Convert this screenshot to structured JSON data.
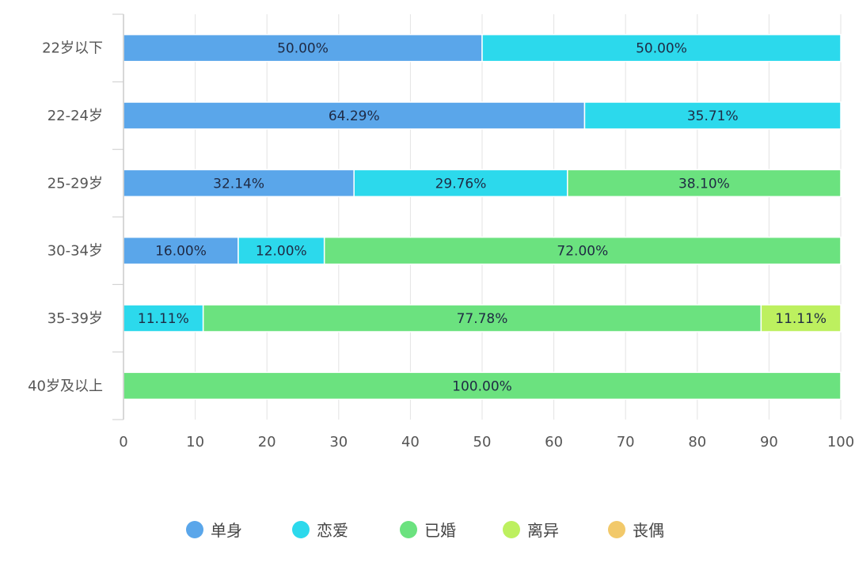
{
  "chart_data": {
    "type": "bar",
    "orientation": "horizontal",
    "stacked": true,
    "categories": [
      "22岁以下",
      "22-24岁",
      "25-29岁",
      "30-34岁",
      "35-39岁",
      "40岁及以上"
    ],
    "series": [
      {
        "name": "单身",
        "color": "#5aa6ea",
        "values": [
          50.0,
          64.29,
          32.14,
          16.0,
          0,
          0
        ],
        "labels": [
          "50.00%",
          "64.29%",
          "32.14%",
          "16.00%",
          "",
          ""
        ]
      },
      {
        "name": "恋爱",
        "color": "#2cd9ec",
        "values": [
          50.0,
          35.71,
          29.76,
          12.0,
          11.11,
          0
        ],
        "labels": [
          "50.00%",
          "35.71%",
          "29.76%",
          "12.00%",
          "11.11%",
          ""
        ]
      },
      {
        "name": "已婚",
        "color": "#6be27f",
        "values": [
          0,
          0,
          38.1,
          72.0,
          77.78,
          100.0
        ],
        "labels": [
          "",
          "",
          "38.10%",
          "72.00%",
          "77.78%",
          "100.00%"
        ]
      },
      {
        "name": "离异",
        "color": "#bdf05f",
        "values": [
          0,
          0,
          0,
          0,
          11.11,
          0
        ],
        "labels": [
          "",
          "",
          "",
          "",
          "11.11%",
          ""
        ]
      },
      {
        "name": "丧偶",
        "color": "#f2c96a",
        "values": [
          0,
          0,
          0,
          0,
          0,
          0
        ],
        "labels": [
          "",
          "",
          "",
          "",
          "",
          ""
        ]
      }
    ],
    "xlim": [
      0,
      100
    ],
    "xticks": [
      0,
      10,
      20,
      30,
      40,
      50,
      60,
      70,
      80,
      90,
      100
    ],
    "grid": true,
    "legend_position": "bottom"
  }
}
